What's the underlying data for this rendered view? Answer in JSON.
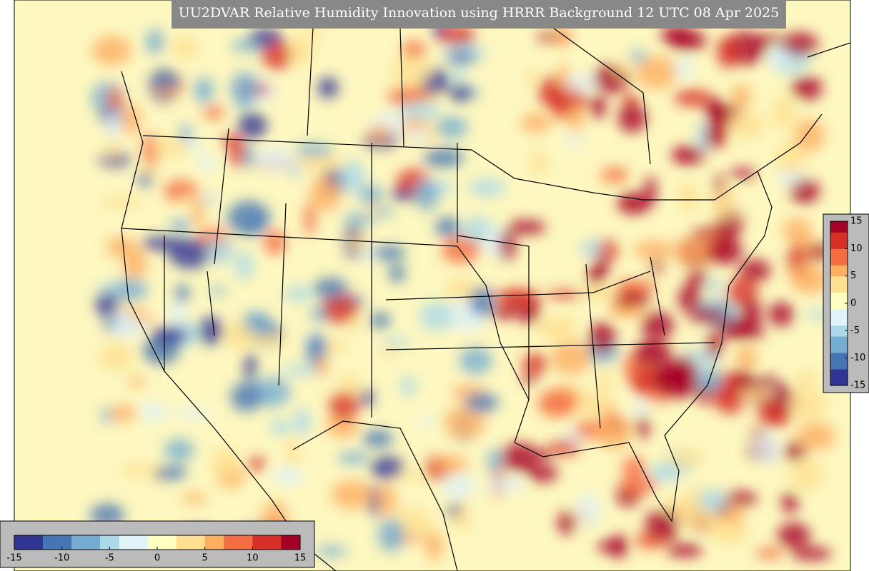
{
  "title": "UU2DVAR Relative Humidity Innovation using HRRR Background 12 UTC 08 Apr 2025",
  "colorbar": {
    "lim": [
      -15,
      15
    ],
    "ticks": [
      -15,
      -10,
      -5,
      0,
      5,
      10,
      15
    ],
    "colors": [
      "#313695",
      "#4575b4",
      "#74add1",
      "#abd9e9",
      "#e0f3f8",
      "#ffffbf",
      "#fee090",
      "#fdae61",
      "#f46d43",
      "#d73027",
      "#a50026"
    ]
  }
}
